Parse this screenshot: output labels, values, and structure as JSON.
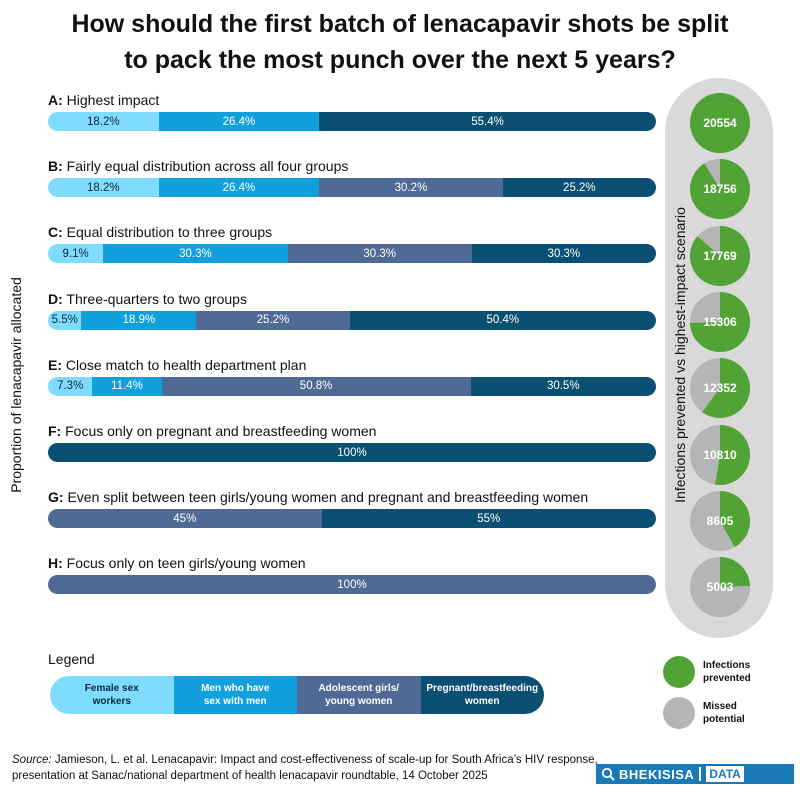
{
  "title_line1": "How should the first batch of lenacapavir shots be split",
  "title_line2": "to pack the most punch over the next 5 years?",
  "y_axis_label": "Proportion of lenacapavir allocated",
  "right_axis_label": "Infections prevented vs highest-impact scenario",
  "colors": {
    "sex_workers": "#7fdcff",
    "msm": "#12a0dd",
    "adolescent": "#4f6b95",
    "pregnant": "#0b4f73",
    "prevented": "#52a336",
    "missed": "#b5b5b5",
    "pill_bg": "#d9d9d9"
  },
  "chart_data": {
    "type": "bar",
    "orientation": "horizontal-stacked-100",
    "groups": [
      "Female sex workers",
      "Men who have sex with men",
      "Adolescent girls/ young women",
      "Pregnant/breastfeeding women"
    ],
    "scenarios": [
      {
        "letter": "A:",
        "name": "Highest impact",
        "values": [
          18.2,
          26.4,
          0,
          55.4
        ],
        "labels": [
          "18.2%",
          "26.4%",
          "",
          "55.4%"
        ],
        "infections_prevented": 20554,
        "fraction_of_best": 1.0,
        "value_label": "20554"
      },
      {
        "letter": "B:",
        "name": "Fairly equal distribution across all four groups",
        "values": [
          18.2,
          26.4,
          30.2,
          25.2
        ],
        "labels": [
          "18.2%",
          "26.4%",
          "30.2%",
          "25.2%"
        ],
        "infections_prevented": 18756,
        "fraction_of_best": 0.9125,
        "value_label": "18756"
      },
      {
        "letter": "C:",
        "name": "Equal distribution to three groups",
        "values": [
          9.1,
          30.3,
          30.3,
          30.3
        ],
        "labels": [
          "9.1%",
          "30.3%",
          "30.3%",
          "30.3%"
        ],
        "infections_prevented": 17769,
        "fraction_of_best": 0.8645,
        "value_label": "17769"
      },
      {
        "letter": "D:",
        "name": "Three-quarters to two groups",
        "values": [
          5.5,
          18.9,
          25.2,
          50.4
        ],
        "labels": [
          "5.5%",
          "18.9%",
          "25.2%",
          "50.4%"
        ],
        "infections_prevented": 15306,
        "fraction_of_best": 0.7447,
        "value_label": "15306"
      },
      {
        "letter": "E:",
        "name": "Close match to health department plan",
        "values": [
          7.3,
          11.4,
          50.8,
          30.5
        ],
        "labels": [
          "7.3%",
          "11.4%",
          "50.8%",
          "30.5%"
        ],
        "infections_prevented": 12352,
        "fraction_of_best": 0.601,
        "value_label": "12352"
      },
      {
        "letter": "F:",
        "name": "Focus only on pregnant and breastfeeding  women",
        "values": [
          0,
          0,
          0,
          100
        ],
        "labels": [
          "",
          "",
          "",
          "100%"
        ],
        "infections_prevented": 10810,
        "fraction_of_best": 0.526,
        "value_label": "10810"
      },
      {
        "letter": "G:",
        "name": "Even split between teen girls/young women and pregnant and breastfeeding women",
        "values": [
          0,
          0,
          45,
          55
        ],
        "labels": [
          "",
          "",
          "45%",
          "55%"
        ],
        "infections_prevented": 8605,
        "fraction_of_best": 0.4187,
        "value_label": "8605"
      },
      {
        "letter": "H:",
        "name": "Focus only on teen girls/young women",
        "values": [
          0,
          0,
          100,
          0
        ],
        "labels": [
          "",
          "",
          "100%",
          ""
        ],
        "infections_prevented": 5003,
        "fraction_of_best": 0.2434,
        "value_label": "5003"
      }
    ]
  },
  "legend": {
    "title": "Legend",
    "items": [
      {
        "line1": "Female sex",
        "line2": "workers"
      },
      {
        "line1": "Men who have",
        "line2": "sex with men"
      },
      {
        "line1": "Adolescent girls/",
        "line2": "young women"
      },
      {
        "line1": "Pregnant/breastfeeding",
        "line2": "women"
      }
    ],
    "pie_items": [
      {
        "line1": "Infections",
        "line2": "prevented"
      },
      {
        "line1": "Missed",
        "line2": "potential"
      }
    ]
  },
  "source": {
    "label": "Source:",
    "text_line1": " Jamieson, L. et al. Lenacapavir: Impact and cost-effectiveness of scale-up for South Africa’s HIV response,",
    "text_line2": "presentation at Sanac/national department of health lenacapavir roundtable, 14 October  2025"
  },
  "logo": {
    "part1": "BHEKISISA",
    "part2": "DATA",
    "icon": "magnifier-icon"
  }
}
